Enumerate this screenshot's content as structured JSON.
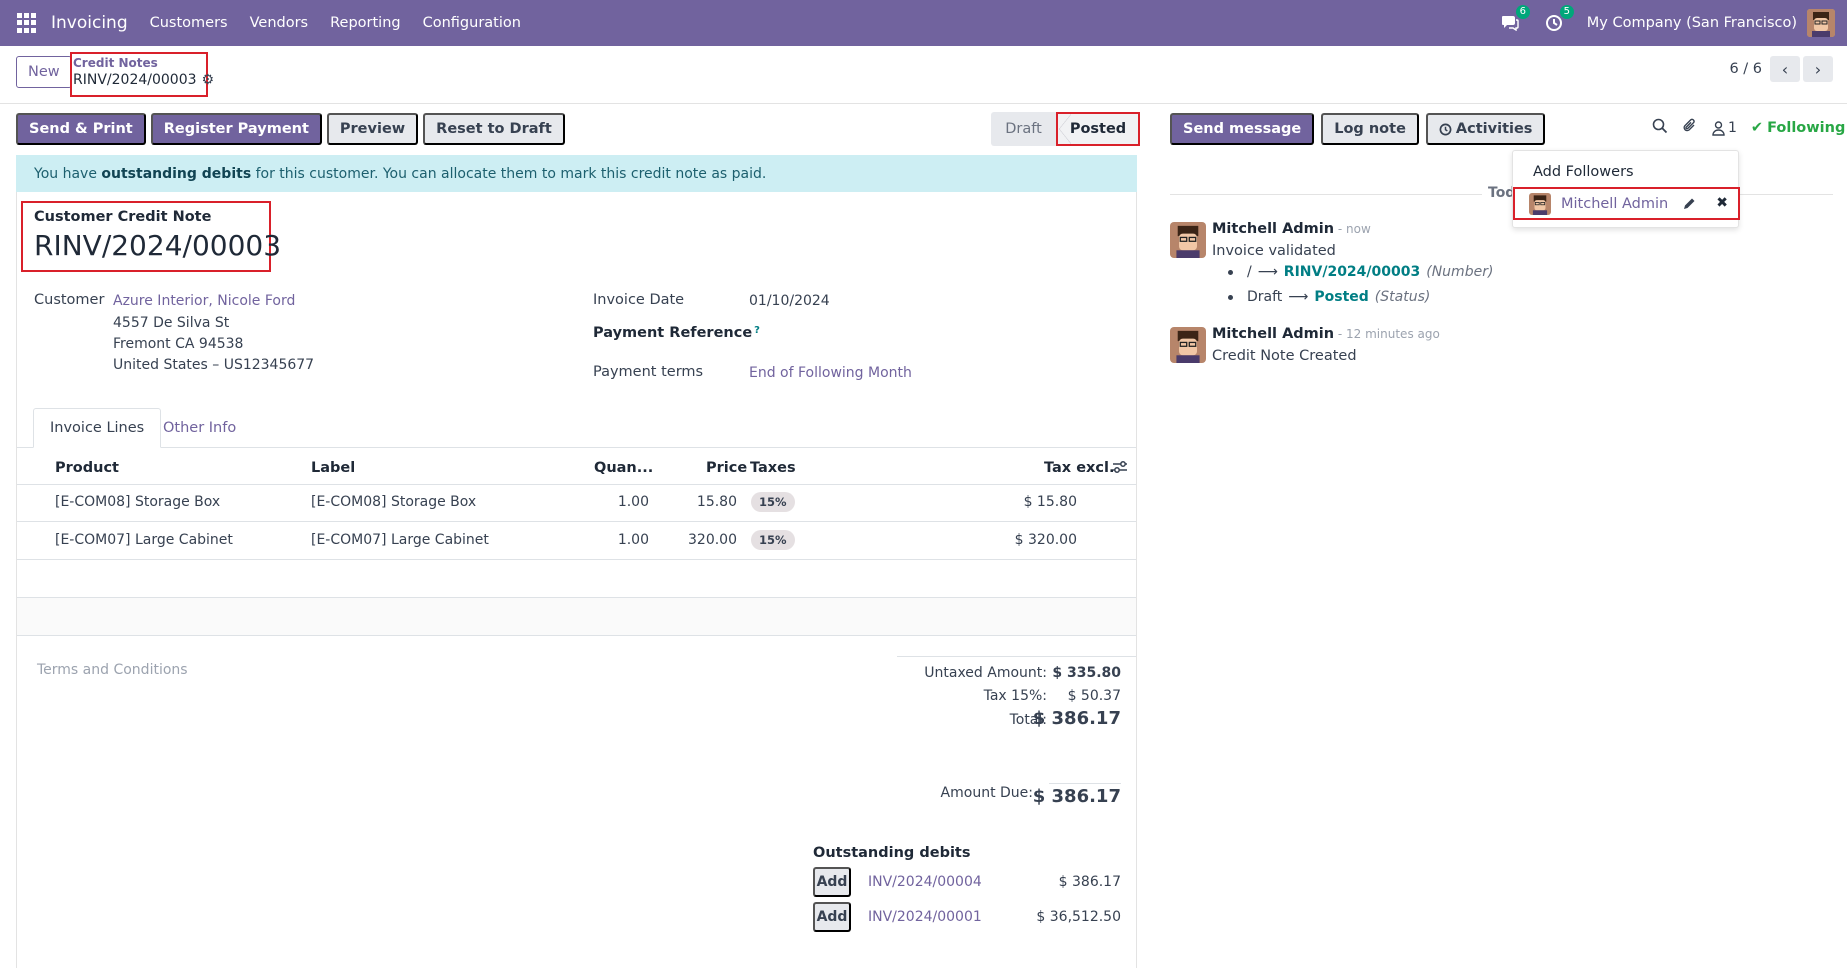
{
  "topnav": {
    "brand": "Invoicing",
    "menu": [
      "Customers",
      "Vendors",
      "Reporting",
      "Configuration"
    ],
    "messages_badge": "6",
    "activities_badge": "5",
    "company": "My Company (San Francisco)"
  },
  "control": {
    "new_label": "New",
    "breadcrumb_parent": "Credit Notes",
    "breadcrumb_current": "RINV/2024/00003",
    "pager": "6 / 6"
  },
  "actions": {
    "send_print": "Send & Print",
    "register_payment": "Register Payment",
    "preview": "Preview",
    "reset_to_draft": "Reset to Draft"
  },
  "status": {
    "draft": "Draft",
    "posted": "Posted"
  },
  "alert": {
    "prefix": "You have ",
    "bold": "outstanding debits",
    "suffix": " for this customer. You can allocate them to mark this credit note as paid."
  },
  "form": {
    "doc_type": "Customer Credit Note",
    "number": "RINV/2024/00003",
    "customer_label": "Customer",
    "customer_name": "Azure Interior, Nicole Ford",
    "address": [
      "4557 De Silva St",
      "Fremont CA 94538",
      "United States – US12345677"
    ],
    "invoice_date_label": "Invoice Date",
    "invoice_date": "01/10/2024",
    "payment_reference_label": "Payment Reference",
    "payment_reference_help": "?",
    "payment_terms_label": "Payment terms",
    "payment_terms": "End of Following Month"
  },
  "tabs": [
    "Invoice Lines",
    "Other Info"
  ],
  "table": {
    "headers": {
      "product": "Product",
      "label": "Label",
      "quantity": "Quan...",
      "price": "Price",
      "taxes": "Taxes",
      "tax_excl": "Tax excl."
    },
    "rows": [
      {
        "product": "[E-COM08] Storage Box",
        "label": "[E-COM08] Storage Box",
        "quantity": "1.00",
        "price": "15.80",
        "tax": "15%",
        "subtotal": "$ 15.80"
      },
      {
        "product": "[E-COM07] Large Cabinet",
        "label": "[E-COM07] Large Cabinet",
        "quantity": "1.00",
        "price": "320.00",
        "tax": "15%",
        "subtotal": "$ 320.00"
      }
    ]
  },
  "terms_placeholder": "Terms and Conditions",
  "totals": {
    "untaxed_label": "Untaxed Amount:",
    "untaxed": "$ 335.80",
    "tax_label": "Tax 15%:",
    "tax": "$ 50.37",
    "total_label": "Total:",
    "total": "$ 386.17",
    "amount_due_label": "Amount Due:",
    "amount_due": "$ 386.17"
  },
  "outstanding": {
    "title": "Outstanding debits",
    "add_label": "Add",
    "items": [
      {
        "ref": "INV/2024/00004",
        "amount": "$ 386.17"
      },
      {
        "ref": "INV/2024/00001",
        "amount": "$ 36,512.50"
      }
    ]
  },
  "chatter": {
    "send_message": "Send message",
    "log_note": "Log note",
    "activities": "Activities",
    "followers_count": "1",
    "following": "Following",
    "today": "Toda",
    "messages": [
      {
        "author": "Mitchell Admin",
        "time": " - now",
        "body": "Invoice validated",
        "changes": [
          {
            "old": "/",
            "new": "RINV/2024/00003",
            "field": "(Number)"
          },
          {
            "old": "Draft",
            "new": "Posted",
            "field": "(Status)"
          }
        ]
      },
      {
        "author": "Mitchell Admin",
        "time": " - 12 minutes ago",
        "body": "Credit Note Created"
      }
    ]
  },
  "followers_dropdown": {
    "add_followers": "Add Followers",
    "follower_name": "Mitchell Admin"
  },
  "colors": {
    "brand": "#71639e",
    "highlight": "#d9202a",
    "alert_bg": "#cdeef3",
    "following": "#28a745"
  }
}
